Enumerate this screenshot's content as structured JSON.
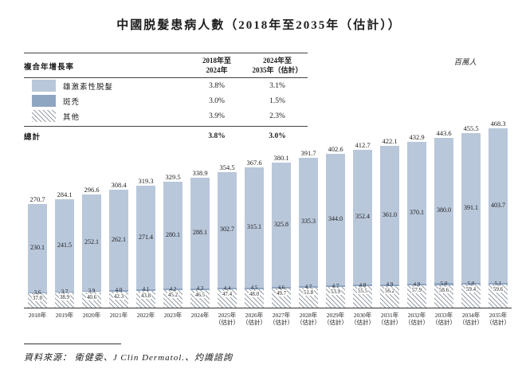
{
  "title": "中國脱髮患病人數（2018年至2035年（估計））",
  "unit_label": "百萬人",
  "cagr_table": {
    "header": {
      "label": "複合年增長率",
      "col1_line1": "2018年至",
      "col1_line2": "2024年",
      "col2_line1": "2024年至",
      "col2_line2": "2035年（估計）"
    },
    "rows": [
      {
        "label": "雄激素性脱髮",
        "swatch": "androgenetic-light-blue",
        "cagr_2018_2024": "3.8%",
        "cagr_2024_2035": "3.1%"
      },
      {
        "label": "斑禿",
        "swatch": "alopecia-areata-dark-blue",
        "cagr_2018_2024": "3.0%",
        "cagr_2024_2035": "1.5%"
      },
      {
        "label": "其他",
        "swatch": "others-diagonal-hatch",
        "cagr_2018_2024": "3.9%",
        "cagr_2024_2035": "2.3%"
      }
    ],
    "total_row": {
      "label": "總計",
      "cagr_2018_2024": "3.8%",
      "cagr_2024_2035": "3.0%"
    }
  },
  "chart_data": {
    "type": "bar",
    "stacked": true,
    "title": "中國脱髮患病人數（2018年至2035年（估計））",
    "unit": "百萬人",
    "xlabel": "",
    "ylabel": "百萬人",
    "ylim": [
      0,
      480
    ],
    "grid": false,
    "legend_position": "top-left-table",
    "categories": [
      "2018年",
      "2019年",
      "2020年",
      "2021年",
      "2022年",
      "2023年",
      "2024年",
      "2025年",
      "2026年",
      "2027年",
      "2028年",
      "2029年",
      "2030年",
      "2031年",
      "2032年",
      "2033年",
      "2034年",
      "2035年"
    ],
    "estimate_suffix": "（估計）",
    "estimate_from_index": 7,
    "series": [
      {
        "name": "雄激素性脱髮",
        "style": "solid-light-blue",
        "values": [
          230.1,
          241.5,
          252.1,
          262.1,
          271.4,
          280.1,
          288.1,
          302.7,
          315.1,
          325.8,
          335.3,
          344.0,
          352.4,
          361.0,
          370.1,
          380.0,
          391.1,
          403.7
        ]
      },
      {
        "name": "斑禿",
        "style": "solid-dark-blue",
        "values": [
          3.6,
          3.7,
          3.9,
          4.0,
          4.1,
          4.2,
          4.3,
          4.4,
          4.5,
          4.6,
          4.7,
          4.7,
          4.8,
          4.9,
          4.9,
          5.0,
          5.0,
          5.1
        ]
      },
      {
        "name": "其他",
        "style": "diagonal-hatch",
        "values": [
          37.0,
          38.9,
          40.6,
          42.3,
          43.8,
          45.2,
          46.5,
          47.4,
          48.0,
          49.7,
          51.8,
          53.9,
          55.5,
          56.2,
          57.9,
          58.6,
          59.4,
          59.6
        ]
      }
    ],
    "totals": [
      270.7,
      284.1,
      296.6,
      308.4,
      319.3,
      329.5,
      338.9,
      354.5,
      367.6,
      380.1,
      391.7,
      402.6,
      412.7,
      422.1,
      432.9,
      443.6,
      455.5,
      468.3
    ]
  },
  "source_note": "資料來源： 衛健委、J Clin Dermatol.、灼識諮詢",
  "colors": {
    "androgenetic": "#b9c7da",
    "alopecia_areata": "#8fa6c3",
    "hatch_line": "#98a0a8",
    "axis": "#333333",
    "text": "#1c1c1c"
  }
}
